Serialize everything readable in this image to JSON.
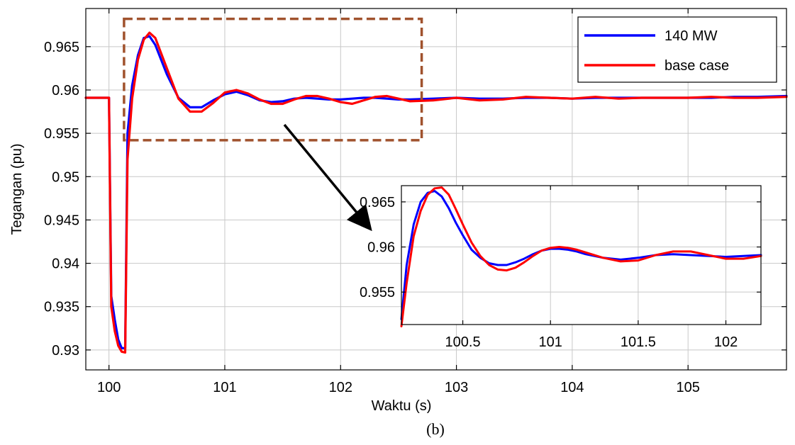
{
  "caption": "(b)",
  "colors": {
    "series_a": "#0000ff",
    "series_b": "#ff0000",
    "box": "#a0522d",
    "arrow": "#000000"
  },
  "chart_data": [
    {
      "type": "line",
      "xlabel": "Waktu (s)",
      "ylabel": "Tegangan (pu)",
      "xlim": [
        99.8,
        105.85
      ],
      "ylim": [
        0.9277,
        0.9694
      ],
      "xticks": [
        100,
        101,
        102,
        103,
        104,
        105
      ],
      "xtick_labels": [
        "100",
        "101",
        "102",
        "103",
        "104",
        "105"
      ],
      "yticks": [
        0.93,
        0.935,
        0.94,
        0.945,
        0.95,
        0.955,
        0.96,
        0.965
      ],
      "ytick_labels": [
        "0.93",
        "0.935",
        "0.94",
        "0.945",
        "0.95",
        "0.955",
        "0.96",
        "0.965"
      ],
      "grid": true,
      "legend_position": "top-right",
      "series": [
        {
          "name": "140 MW",
          "x": [
            99.8,
            100.0,
            100.02,
            100.05,
            100.08,
            100.11,
            100.14,
            100.16,
            100.2,
            100.25,
            100.3,
            100.35,
            100.4,
            100.5,
            100.6,
            100.7,
            100.8,
            100.9,
            101.0,
            101.1,
            101.2,
            101.3,
            101.4,
            101.5,
            101.6,
            101.7,
            101.8,
            101.9,
            102.0,
            102.1,
            102.2,
            102.3,
            102.4,
            102.5,
            102.6,
            102.8,
            103.0,
            103.2,
            103.4,
            103.6,
            103.8,
            104.0,
            104.2,
            104.4,
            104.6,
            104.8,
            105.0,
            105.2,
            105.4,
            105.6,
            105.85
          ],
          "values": [
            0.9591,
            0.9591,
            0.9362,
            0.9335,
            0.9312,
            0.9302,
            0.9302,
            0.955,
            0.9605,
            0.964,
            0.966,
            0.9662,
            0.9652,
            0.9618,
            0.9591,
            0.958,
            0.958,
            0.9588,
            0.9595,
            0.9598,
            0.9594,
            0.9588,
            0.9586,
            0.9587,
            0.959,
            0.9591,
            0.959,
            0.9589,
            0.9589,
            0.959,
            0.9591,
            0.9591,
            0.959,
            0.9589,
            0.9589,
            0.959,
            0.9591,
            0.959,
            0.959,
            0.9591,
            0.9591,
            0.959,
            0.9591,
            0.9591,
            0.9591,
            0.9591,
            0.9591,
            0.9591,
            0.9592,
            0.9592,
            0.9593
          ]
        },
        {
          "name": "base case",
          "x": [
            99.8,
            100.0,
            100.02,
            100.05,
            100.08,
            100.11,
            100.14,
            100.16,
            100.2,
            100.25,
            100.3,
            100.35,
            100.4,
            100.5,
            100.6,
            100.7,
            100.8,
            100.9,
            101.0,
            101.1,
            101.2,
            101.3,
            101.4,
            101.5,
            101.6,
            101.7,
            101.8,
            101.9,
            102.0,
            102.1,
            102.2,
            102.3,
            102.4,
            102.5,
            102.6,
            102.8,
            103.0,
            103.2,
            103.4,
            103.6,
            103.8,
            104.0,
            104.2,
            104.4,
            104.6,
            104.8,
            105.0,
            105.2,
            105.4,
            105.6,
            105.85
          ],
          "values": [
            0.9591,
            0.9591,
            0.935,
            0.9322,
            0.9305,
            0.9298,
            0.9297,
            0.952,
            0.959,
            0.9635,
            0.9658,
            0.9666,
            0.966,
            0.9625,
            0.959,
            0.9575,
            0.9575,
            0.9585,
            0.9597,
            0.96,
            0.9596,
            0.9589,
            0.9584,
            0.9584,
            0.9589,
            0.9593,
            0.9593,
            0.959,
            0.9586,
            0.9584,
            0.9588,
            0.9592,
            0.9593,
            0.959,
            0.9587,
            0.9588,
            0.9591,
            0.9588,
            0.9589,
            0.9592,
            0.9591,
            0.959,
            0.9592,
            0.959,
            0.9591,
            0.9591,
            0.9591,
            0.9592,
            0.9591,
            0.9591,
            0.9592
          ]
        }
      ],
      "highlight_box": {
        "x": [
          100.13,
          102.7
        ],
        "y": [
          0.9542,
          0.9682
        ]
      }
    },
    {
      "type": "line",
      "xlim": [
        100.15,
        102.2
      ],
      "ylim": [
        0.9514,
        0.9668
      ],
      "xticks": [
        100.5,
        101,
        101.5,
        102
      ],
      "xtick_labels": [
        "100.5",
        "101",
        "101.5",
        "102"
      ],
      "yticks": [
        0.955,
        0.96,
        0.965
      ],
      "ytick_labels": [
        "0.955",
        "0.96",
        "0.965"
      ],
      "grid": true,
      "series": [
        {
          "x": [
            100.15,
            100.18,
            100.22,
            100.26,
            100.3,
            100.34,
            100.38,
            100.42,
            100.46,
            100.5,
            100.55,
            100.6,
            100.65,
            100.7,
            100.75,
            100.8,
            100.85,
            100.9,
            100.95,
            101.0,
            101.05,
            101.1,
            101.15,
            101.2,
            101.3,
            101.4,
            101.5,
            101.6,
            101.7,
            101.8,
            101.9,
            102.0,
            102.1,
            102.2
          ],
          "values": [
            0.952,
            0.958,
            0.9625,
            0.965,
            0.966,
            0.9662,
            0.9656,
            0.9643,
            0.9627,
            0.9613,
            0.9597,
            0.9588,
            0.9582,
            0.958,
            0.958,
            0.9583,
            0.9587,
            0.9592,
            0.9596,
            0.9598,
            0.9598,
            0.9597,
            0.9595,
            0.9592,
            0.9588,
            0.9586,
            0.9588,
            0.9591,
            0.9592,
            0.9591,
            0.959,
            0.9589,
            0.959,
            0.9591
          ]
        },
        {
          "x": [
            100.15,
            100.18,
            100.22,
            100.26,
            100.3,
            100.34,
            100.38,
            100.42,
            100.46,
            100.5,
            100.55,
            100.6,
            100.65,
            100.7,
            100.75,
            100.8,
            100.85,
            100.9,
            100.95,
            101.0,
            101.05,
            101.1,
            101.15,
            101.2,
            101.3,
            101.4,
            101.5,
            101.6,
            101.7,
            101.8,
            101.9,
            102.0,
            102.1,
            102.2
          ],
          "values": [
            0.9512,
            0.956,
            0.9612,
            0.964,
            0.9658,
            0.9665,
            0.9666,
            0.9658,
            0.9642,
            0.9625,
            0.9605,
            0.959,
            0.958,
            0.9575,
            0.9574,
            0.9577,
            0.9583,
            0.959,
            0.9596,
            0.9599,
            0.96,
            0.9599,
            0.9597,
            0.9594,
            0.9588,
            0.9584,
            0.9585,
            0.9591,
            0.9595,
            0.9595,
            0.9591,
            0.9587,
            0.9587,
            0.959
          ]
        }
      ]
    }
  ]
}
